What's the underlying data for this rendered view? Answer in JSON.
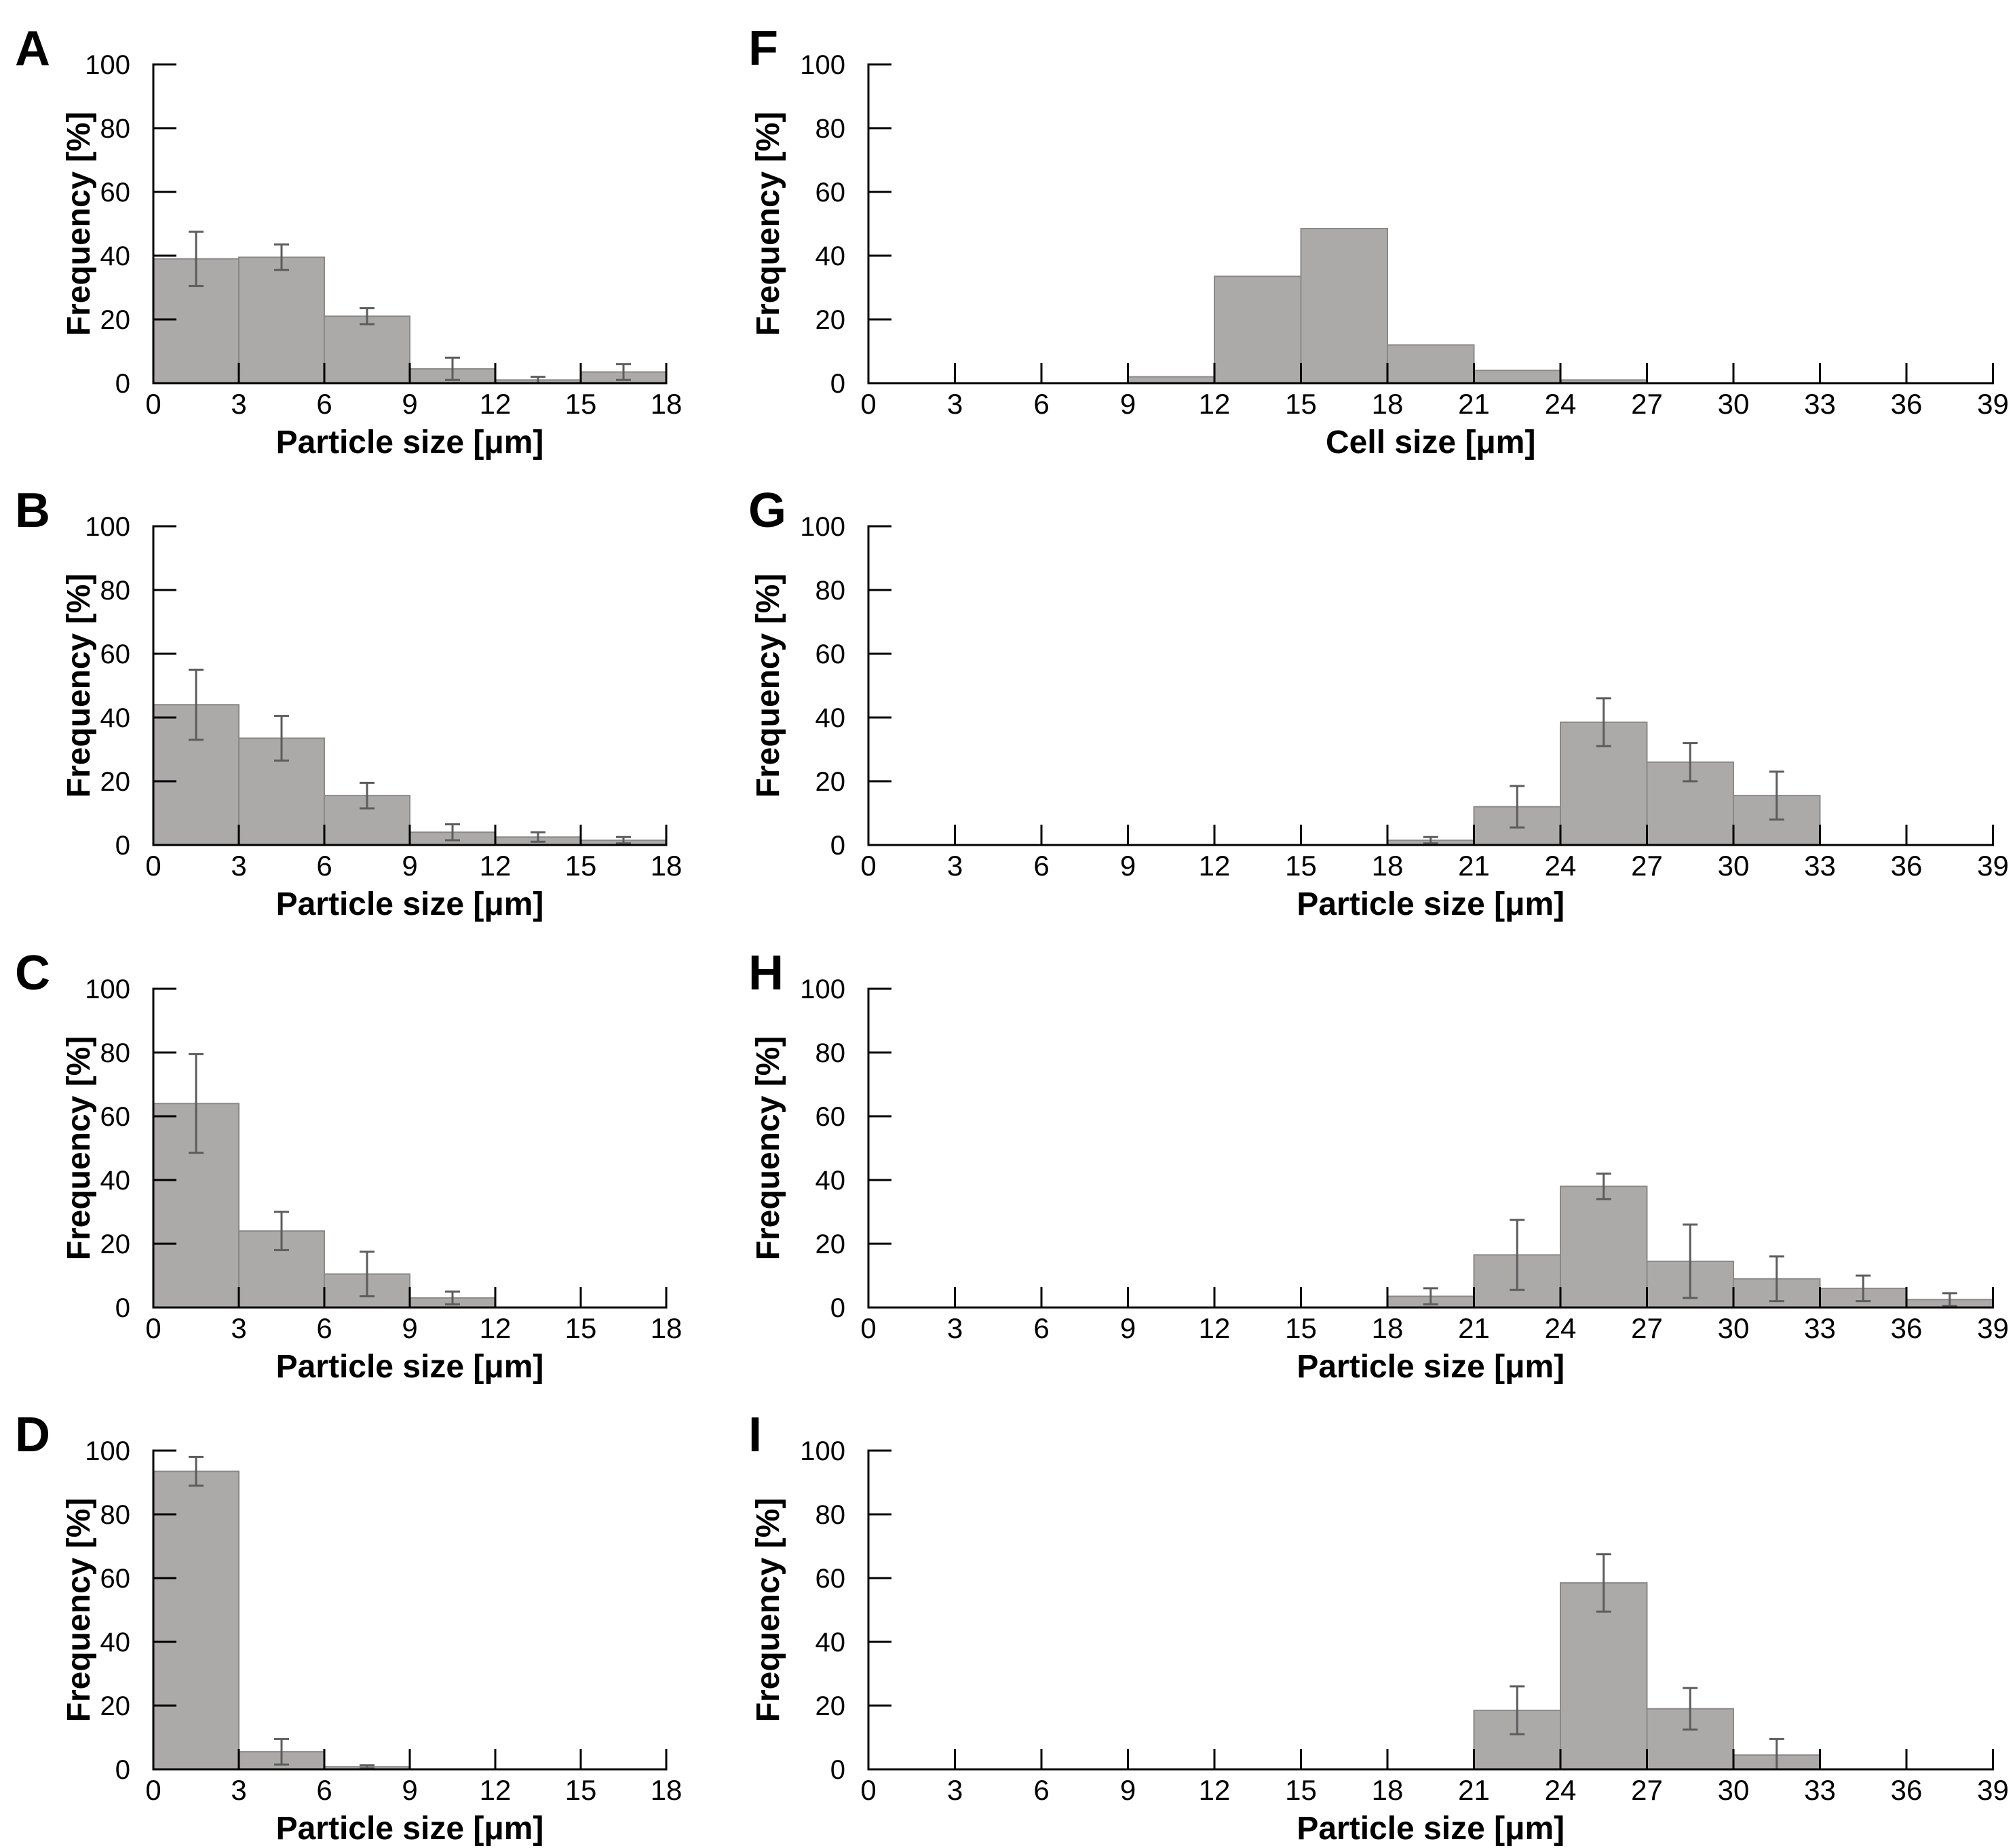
{
  "figure": {
    "background": "#ffffff",
    "colors": {
      "bar_fill": "#aca9a9",
      "bar_edge": "#8b8888",
      "error_bar": "#5c5c5c",
      "axis": "#000000"
    },
    "y_axis": {
      "label": "Frequency [%]",
      "min": 0,
      "max": 100,
      "tick_step": 20,
      "ticks": [
        0,
        20,
        40,
        60,
        80,
        100
      ]
    }
  },
  "chart_data": [
    {
      "id": "A",
      "type": "bar",
      "panel_label": "A",
      "column": "left",
      "row": 0,
      "xlabel": "Particle size [μm]",
      "ylabel": "Frequency [%]",
      "xlim": [
        0,
        18
      ],
      "ylim": [
        0,
        100
      ],
      "bin_width": 3,
      "x_ticks": [
        0,
        3,
        6,
        9,
        12,
        15,
        18
      ],
      "bin_starts": [
        0,
        3,
        6,
        9,
        12,
        15
      ],
      "values": [
        39,
        39.5,
        21,
        4.5,
        1,
        3.5
      ],
      "errors": [
        8.5,
        4,
        2.5,
        3.5,
        1,
        2.5
      ]
    },
    {
      "id": "B",
      "type": "bar",
      "panel_label": "B",
      "column": "left",
      "row": 1,
      "xlabel": "Particle size [μm]",
      "ylabel": "Frequency [%]",
      "xlim": [
        0,
        18
      ],
      "ylim": [
        0,
        100
      ],
      "bin_width": 3,
      "x_ticks": [
        0,
        3,
        6,
        9,
        12,
        15,
        18
      ],
      "bin_starts": [
        0,
        3,
        6,
        9,
        12,
        15
      ],
      "values": [
        44,
        33.5,
        15.5,
        4,
        2.5,
        1.5
      ],
      "errors": [
        11,
        7,
        4,
        2.5,
        1.5,
        1
      ]
    },
    {
      "id": "C",
      "type": "bar",
      "panel_label": "C",
      "column": "left",
      "row": 2,
      "xlabel": "Particle size [μm]",
      "ylabel": "Frequency [%]",
      "xlim": [
        0,
        18
      ],
      "ylim": [
        0,
        100
      ],
      "bin_width": 3,
      "x_ticks": [
        0,
        3,
        6,
        9,
        12,
        15,
        18
      ],
      "bin_starts": [
        0,
        3,
        6,
        9,
        12,
        15
      ],
      "values": [
        64,
        24,
        10.5,
        3,
        0,
        0
      ],
      "errors": [
        15.5,
        6,
        7,
        2,
        0,
        0
      ]
    },
    {
      "id": "D",
      "type": "bar",
      "panel_label": "D",
      "column": "left",
      "row": 3,
      "xlabel": "Particle size [μm]",
      "ylabel": "Frequency [%]",
      "xlim": [
        0,
        18
      ],
      "ylim": [
        0,
        100
      ],
      "bin_width": 3,
      "x_ticks": [
        0,
        3,
        6,
        9,
        12,
        15,
        18
      ],
      "bin_starts": [
        0,
        3,
        6,
        9,
        12,
        15
      ],
      "values": [
        93.5,
        5.5,
        0.8,
        0,
        0,
        0
      ],
      "errors": [
        4.5,
        4,
        0.5,
        0,
        0,
        0
      ]
    },
    {
      "id": "F",
      "type": "bar",
      "panel_label": "F",
      "column": "right",
      "row": 0,
      "xlabel": "Cell size [μm]",
      "ylabel": "Frequency [%]",
      "xlim": [
        0,
        39
      ],
      "ylim": [
        0,
        100
      ],
      "bin_width": 3,
      "x_ticks": [
        0,
        3,
        6,
        9,
        12,
        15,
        18,
        21,
        24,
        27,
        30,
        33,
        36,
        39
      ],
      "bin_starts": [
        0,
        3,
        6,
        9,
        12,
        15,
        18,
        21,
        24,
        27,
        30,
        33,
        36
      ],
      "values": [
        0,
        0,
        0,
        2,
        33.5,
        48.5,
        12,
        4,
        1,
        0,
        0,
        0,
        0
      ],
      "errors": [
        0,
        0,
        0,
        0,
        0,
        0,
        0,
        0,
        0,
        0,
        0,
        0,
        0
      ]
    },
    {
      "id": "G",
      "type": "bar",
      "panel_label": "G",
      "column": "right",
      "row": 1,
      "xlabel": "Particle size [μm]",
      "ylabel": "Frequency [%]",
      "xlim": [
        0,
        39
      ],
      "ylim": [
        0,
        100
      ],
      "bin_width": 3,
      "x_ticks": [
        0,
        3,
        6,
        9,
        12,
        15,
        18,
        21,
        24,
        27,
        30,
        33,
        36,
        39
      ],
      "bin_starts": [
        0,
        3,
        6,
        9,
        12,
        15,
        18,
        21,
        24,
        27,
        30,
        33,
        36
      ],
      "values": [
        0,
        0,
        0,
        0,
        0,
        0,
        1.5,
        12,
        38.5,
        26,
        15.5,
        0,
        0
      ],
      "errors": [
        0,
        0,
        0,
        0,
        0,
        0,
        1,
        6.5,
        7.5,
        6,
        7.5,
        0,
        0
      ]
    },
    {
      "id": "H",
      "type": "bar",
      "panel_label": "H",
      "column": "right",
      "row": 2,
      "xlabel": "Particle size [μm]",
      "ylabel": "Frequency [%]",
      "xlim": [
        0,
        39
      ],
      "ylim": [
        0,
        100
      ],
      "bin_width": 3,
      "x_ticks": [
        0,
        3,
        6,
        9,
        12,
        15,
        18,
        21,
        24,
        27,
        30,
        33,
        36,
        39
      ],
      "bin_starts": [
        0,
        3,
        6,
        9,
        12,
        15,
        18,
        21,
        24,
        27,
        30,
        33,
        36
      ],
      "values": [
        0,
        0,
        0,
        0,
        0,
        0,
        3.5,
        16.5,
        38,
        14.5,
        9,
        6,
        2.5
      ],
      "errors": [
        0,
        0,
        0,
        0,
        0,
        0,
        2.5,
        11,
        4,
        11.5,
        7,
        4,
        2
      ]
    },
    {
      "id": "I",
      "type": "bar",
      "panel_label": "I",
      "column": "right",
      "row": 3,
      "xlabel": "Particle size [μm]",
      "ylabel": "Frequency [%]",
      "xlim": [
        0,
        39
      ],
      "ylim": [
        0,
        100
      ],
      "bin_width": 3,
      "x_ticks": [
        0,
        3,
        6,
        9,
        12,
        15,
        18,
        21,
        24,
        27,
        30,
        33,
        36,
        39
      ],
      "bin_starts": [
        0,
        3,
        6,
        9,
        12,
        15,
        18,
        21,
        24,
        27,
        30,
        33,
        36
      ],
      "values": [
        0,
        0,
        0,
        0,
        0,
        0,
        0,
        18.5,
        58.5,
        19,
        4.5,
        0,
        0
      ],
      "errors": [
        0,
        0,
        0,
        0,
        0,
        0,
        0,
        7.5,
        9,
        6.5,
        5,
        0,
        0
      ]
    }
  ]
}
